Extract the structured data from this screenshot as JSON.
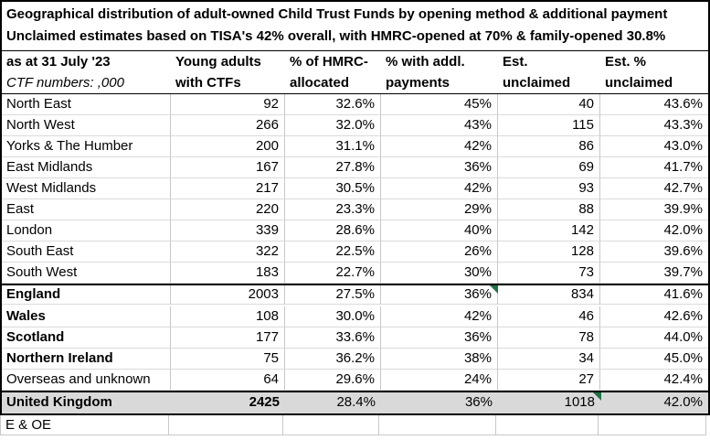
{
  "title": {
    "line1": "Geographical distribution of adult-owned Child Trust Funds by opening method & additional payment",
    "line2": "Unclaimed estimates based on TISA's 42% overall, with HMRC-opened at 70% & family-opened 30.8%"
  },
  "table": {
    "header": {
      "col_a_line1": "as at 31 July '23",
      "col_a_line2": "CTF numbers: ,000",
      "columns": [
        {
          "line1": "Young adults",
          "line2": "with CTFs"
        },
        {
          "line1": "% of HMRC-",
          "line2": "allocated"
        },
        {
          "line1": "% with addl.",
          "line2": "payments"
        },
        {
          "line1": "Est.",
          "line2": "unclaimed"
        },
        {
          "line1": "Est. %",
          "line2": "unclaimed"
        }
      ]
    },
    "rows": [
      {
        "region": "North East",
        "ctfs": "92",
        "hmrc_pct": "32.6%",
        "addl_pct": "45%",
        "est_unclaimed": "40",
        "est_unclaimed_pct": "43.6%"
      },
      {
        "region": "North West",
        "ctfs": "266",
        "hmrc_pct": "32.0%",
        "addl_pct": "43%",
        "est_unclaimed": "115",
        "est_unclaimed_pct": "43.3%"
      },
      {
        "region": "Yorks & The Humber",
        "ctfs": "200",
        "hmrc_pct": "31.1%",
        "addl_pct": "42%",
        "est_unclaimed": "86",
        "est_unclaimed_pct": "43.0%"
      },
      {
        "region": "East Midlands",
        "ctfs": "167",
        "hmrc_pct": "27.8%",
        "addl_pct": "36%",
        "est_unclaimed": "69",
        "est_unclaimed_pct": "41.7%"
      },
      {
        "region": "West Midlands",
        "ctfs": "217",
        "hmrc_pct": "30.5%",
        "addl_pct": "42%",
        "est_unclaimed": "93",
        "est_unclaimed_pct": "42.7%"
      },
      {
        "region": "East",
        "ctfs": "220",
        "hmrc_pct": "23.3%",
        "addl_pct": "29%",
        "est_unclaimed": "88",
        "est_unclaimed_pct": "39.9%"
      },
      {
        "region": "London",
        "ctfs": "339",
        "hmrc_pct": "28.6%",
        "addl_pct": "40%",
        "est_unclaimed": "142",
        "est_unclaimed_pct": "42.0%"
      },
      {
        "region": "South East",
        "ctfs": "322",
        "hmrc_pct": "22.5%",
        "addl_pct": "26%",
        "est_unclaimed": "128",
        "est_unclaimed_pct": "39.6%"
      },
      {
        "region": "South West",
        "ctfs": "183",
        "hmrc_pct": "22.7%",
        "addl_pct": "30%",
        "est_unclaimed": "73",
        "est_unclaimed_pct": "39.7%"
      },
      {
        "region": "England",
        "ctfs": "2003",
        "hmrc_pct": "27.5%",
        "addl_pct": "36%",
        "est_unclaimed": "834",
        "est_unclaimed_pct": "41.6%",
        "bold_label": true,
        "thick_top": true,
        "flag": "addl_pct"
      },
      {
        "region": "Wales",
        "ctfs": "108",
        "hmrc_pct": "30.0%",
        "addl_pct": "42%",
        "est_unclaimed": "46",
        "est_unclaimed_pct": "42.6%",
        "bold_label": true
      },
      {
        "region": "Scotland",
        "ctfs": "177",
        "hmrc_pct": "33.6%",
        "addl_pct": "36%",
        "est_unclaimed": "78",
        "est_unclaimed_pct": "44.0%",
        "bold_label": true
      },
      {
        "region": "Northern Ireland",
        "ctfs": "75",
        "hmrc_pct": "36.2%",
        "addl_pct": "38%",
        "est_unclaimed": "34",
        "est_unclaimed_pct": "45.0%",
        "bold_label": true
      },
      {
        "region": "Overseas and unknown",
        "ctfs": "64",
        "hmrc_pct": "29.6%",
        "addl_pct": "24%",
        "est_unclaimed": "27",
        "est_unclaimed_pct": "42.4%"
      },
      {
        "region": "United Kingdom",
        "ctfs": "2425",
        "hmrc_pct": "28.4%",
        "addl_pct": "36%",
        "est_unclaimed": "1018",
        "est_unclaimed_pct": "42.0%",
        "bold_label": true,
        "bold_ctfs": true,
        "shaded": true,
        "thick_top": true,
        "flag": "est_unclaimed"
      }
    ],
    "footer_note": "E & OE"
  },
  "colors": {
    "shaded_row": "#d9d9d9",
    "flag_green": "#217346",
    "gridline": "#c8c8c8",
    "thick_border": "#000000"
  }
}
